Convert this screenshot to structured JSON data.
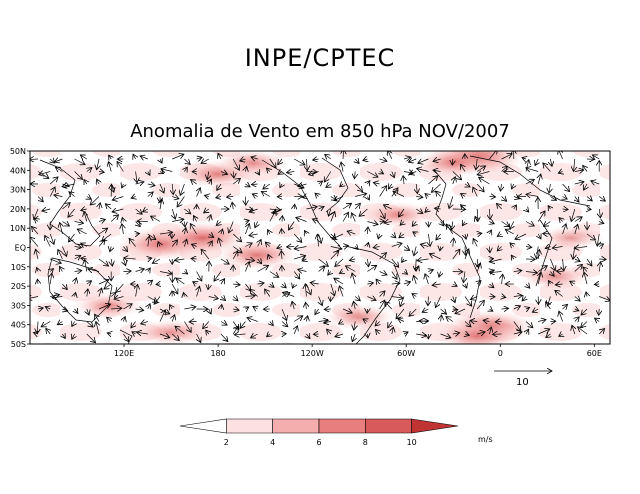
{
  "header": {
    "title": "INPE/CPTEC"
  },
  "map": {
    "title": "Anomalia de Vento em 850 hPa NOV/2007",
    "lat_labels": [
      "50N",
      "40N",
      "30N",
      "20N",
      "10N",
      "EQ",
      "10S",
      "20S",
      "30S",
      "40S",
      "50S"
    ],
    "lon_labels": [
      "120E",
      "180",
      "120W",
      "60W",
      "0",
      "60E"
    ],
    "background_color": "#ffffff",
    "vector_color": "#000000"
  },
  "reference_vector": {
    "label": "10",
    "units": "m/s"
  },
  "colorbar": {
    "levels": [
      "2",
      "4",
      "6",
      "8",
      "10"
    ],
    "units": "m/s",
    "colors": [
      "#ffffff",
      "#fde0e0",
      "#f4aeae",
      "#e87e7e",
      "#d85a5a",
      "#c03434"
    ]
  },
  "shading_regions": [
    {
      "lon": 145,
      "lat": 2,
      "strength": 0.9
    },
    {
      "lon": 170,
      "lat": 5,
      "strength": 0.9
    },
    {
      "lon": 205,
      "lat": -4,
      "strength": 0.7
    },
    {
      "lon": 345,
      "lat": 47,
      "strength": 1.0
    },
    {
      "lon": 330,
      "lat": 44,
      "strength": 0.6
    },
    {
      "lon": 353,
      "lat": -41,
      "strength": 0.9
    },
    {
      "lon": 345,
      "lat": -46,
      "strength": 0.7
    },
    {
      "lon": 180,
      "lat": 38,
      "strength": 0.6
    },
    {
      "lon": 202,
      "lat": 44,
      "strength": 0.5
    },
    {
      "lon": 110,
      "lat": -30,
      "strength": 0.5
    },
    {
      "lon": 150,
      "lat": -44,
      "strength": 0.5
    },
    {
      "lon": 270,
      "lat": -36,
      "strength": 0.5
    },
    {
      "lon": 295,
      "lat": 17,
      "strength": 0.5
    },
    {
      "lon": 395,
      "lat": -15,
      "strength": 0.5
    },
    {
      "lon": 405,
      "lat": 5,
      "strength": 0.4
    }
  ]
}
